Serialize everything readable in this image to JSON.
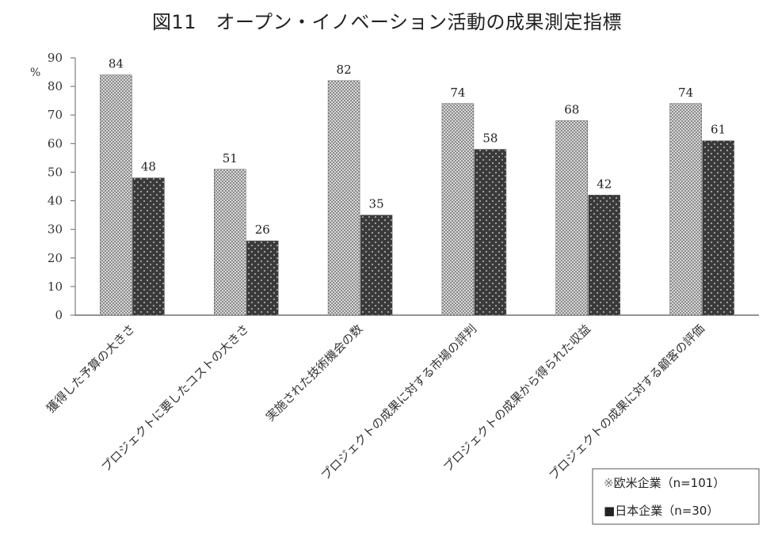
{
  "title": "図11　オープン・イノベーション活動の成果測定指標",
  "chart_data": {
    "type": "bar",
    "title": "図11　オープン・イノベーション活動の成果測定指標",
    "ylabel": "%",
    "ylim": [
      0,
      90
    ],
    "yticks": [
      0,
      10,
      20,
      30,
      40,
      50,
      60,
      70,
      80,
      90
    ],
    "grid": false,
    "legend_position": "bottom-right",
    "categories": [
      "獲得した予算の大きさ",
      "プロジェクトに要したコストの大きさ",
      "実施された技術機会の数",
      "プロジェクトの成果に対する市場の評判",
      "プロジェクトの成果から得られた収益",
      "プロジェクトの成果に対する顧客の評価"
    ],
    "series": [
      {
        "name": "欧米企業（n=101）",
        "values": [
          84,
          51,
          82,
          74,
          68,
          74
        ],
        "color": "#b8b8b8"
      },
      {
        "name": "日本企業（n=30）",
        "values": [
          48,
          26,
          35,
          58,
          42,
          61
        ],
        "color": "#3a3a3a"
      }
    ]
  }
}
